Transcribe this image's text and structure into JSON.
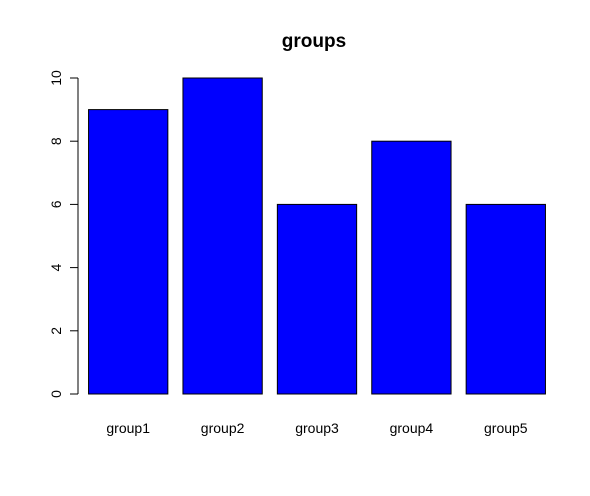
{
  "chart_data": {
    "type": "bar",
    "title": "groups",
    "xlabel": "",
    "ylabel": "",
    "categories": [
      "group1",
      "group2",
      "group3",
      "group4",
      "group5"
    ],
    "values": [
      9,
      10,
      6,
      8,
      6
    ],
    "ylim": [
      0,
      10
    ],
    "yticks": [
      0,
      2,
      4,
      6,
      8,
      10
    ],
    "ytick_labels": [
      "0",
      "2",
      "4",
      "6",
      "8",
      "10"
    ],
    "grid": false,
    "legend": "none",
    "bar_color": "#0000ff",
    "bar_edge_color": "#000000"
  }
}
